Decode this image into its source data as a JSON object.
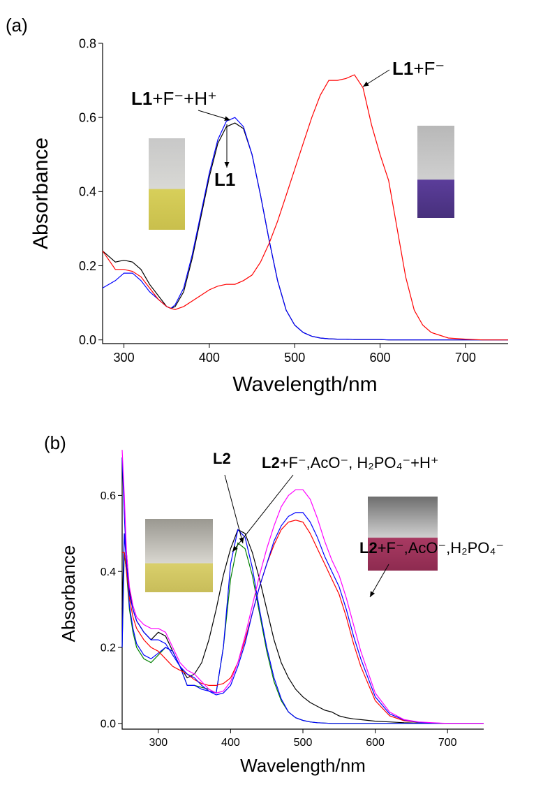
{
  "chart_data": [
    {
      "type": "line",
      "panel": "(a)",
      "xlabel": "Wavelength/nm",
      "ylabel": "Absorbance",
      "xlim": [
        275,
        750
      ],
      "xticks": [
        300,
        400,
        500,
        600,
        700
      ],
      "ylim": [
        -0.01,
        0.8
      ],
      "yticks": [
        {
          "value": 0,
          "label": "0.0"
        },
        0.2,
        0.4,
        0.6,
        0.8
      ],
      "x": [
        275,
        290,
        300,
        310,
        320,
        330,
        340,
        350,
        355,
        360,
        370,
        380,
        390,
        400,
        410,
        420,
        430,
        440,
        450,
        460,
        470,
        480,
        490,
        500,
        510,
        520,
        530,
        540,
        550,
        560,
        570,
        580,
        590,
        600,
        610,
        620,
        630,
        640,
        650,
        660,
        680,
        700,
        720,
        750
      ],
      "series": [
        {
          "color": "#000000",
          "values": [
            0.24,
            0.21,
            0.215,
            0.21,
            0.19,
            0.15,
            0.12,
            0.09,
            0.085,
            0.09,
            0.13,
            0.22,
            0.33,
            0.44,
            0.53,
            0.575,
            0.585,
            0.57,
            0.5,
            0.39,
            0.27,
            0.16,
            0.08,
            0.04,
            0.02,
            0.01,
            0.005,
            0.003,
            0.002,
            0.002,
            0.001,
            0.001,
            0.001,
            0.001,
            0,
            0,
            0,
            0,
            0,
            0,
            0,
            0,
            0,
            0
          ]
        },
        {
          "color": "#0000ff",
          "values": [
            0.14,
            0.16,
            0.18,
            0.18,
            0.16,
            0.13,
            0.11,
            0.09,
            0.085,
            0.095,
            0.14,
            0.23,
            0.34,
            0.45,
            0.54,
            0.59,
            0.6,
            0.575,
            0.5,
            0.39,
            0.27,
            0.16,
            0.08,
            0.04,
            0.02,
            0.01,
            0.005,
            0.003,
            0.002,
            0.002,
            0.001,
            0.001,
            0.001,
            0.001,
            0,
            0,
            0,
            0,
            0,
            0,
            0,
            0,
            0,
            0
          ]
        },
        {
          "color": "#ff0000",
          "values": [
            0.24,
            0.19,
            0.19,
            0.185,
            0.17,
            0.14,
            0.11,
            0.09,
            0.085,
            0.082,
            0.09,
            0.105,
            0.12,
            0.135,
            0.145,
            0.15,
            0.15,
            0.16,
            0.175,
            0.21,
            0.26,
            0.32,
            0.39,
            0.46,
            0.53,
            0.6,
            0.66,
            0.7,
            0.7,
            0.705,
            0.715,
            0.68,
            0.58,
            0.5,
            0.43,
            0.3,
            0.17,
            0.08,
            0.04,
            0.02,
            0.005,
            0.002,
            0,
            0
          ]
        }
      ],
      "annotations": [
        {
          "bold": "L1",
          "text": "+F⁻+H⁺"
        },
        {
          "bold": "L1",
          "text": ""
        },
        {
          "bold": "L1",
          "text": "+F⁻"
        }
      ]
    },
    {
      "type": "line",
      "panel": "(b)",
      "xlabel": "Wavelength/nm",
      "ylabel": "Absorbance",
      "xlim": [
        250,
        750
      ],
      "xticks": [
        300,
        400,
        500,
        600,
        700
      ],
      "ylim": [
        -0.015,
        0.7
      ],
      "yticks": [
        {
          "value": 0,
          "label": "0.0"
        },
        0.2,
        0.4,
        0.6
      ],
      "x": [
        250,
        253,
        256,
        260,
        265,
        270,
        280,
        290,
        300,
        310,
        320,
        330,
        340,
        350,
        360,
        370,
        380,
        390,
        400,
        410,
        420,
        430,
        440,
        450,
        460,
        470,
        480,
        490,
        500,
        510,
        520,
        530,
        540,
        550,
        560,
        570,
        580,
        600,
        620,
        640,
        660,
        680,
        700,
        750
      ],
      "series": [
        {
          "color": "#000000",
          "values": [
            0.3,
            0.5,
            0.45,
            0.35,
            0.3,
            0.27,
            0.24,
            0.22,
            0.24,
            0.23,
            0.19,
            0.15,
            0.12,
            0.13,
            0.16,
            0.22,
            0.3,
            0.39,
            0.46,
            0.51,
            0.5,
            0.45,
            0.38,
            0.3,
            0.22,
            0.16,
            0.12,
            0.09,
            0.07,
            0.055,
            0.045,
            0.035,
            0.03,
            0.02,
            0.015,
            0.012,
            0.01,
            0.006,
            0.004,
            0.002,
            0.001,
            0,
            0,
            0
          ]
        },
        {
          "color": "#008000",
          "values": [
            0.2,
            0.45,
            0.4,
            0.3,
            0.24,
            0.2,
            0.17,
            0.16,
            0.18,
            0.2,
            0.19,
            0.15,
            0.1,
            0.1,
            0.095,
            0.09,
            0.08,
            0.2,
            0.38,
            0.475,
            0.46,
            0.39,
            0.29,
            0.19,
            0.11,
            0.06,
            0.03,
            0.015,
            0.008,
            0.004,
            0.002,
            0.001,
            0,
            0,
            0,
            0,
            0,
            0,
            0,
            0,
            0,
            0,
            0,
            0
          ]
        },
        {
          "color": "#0000ff",
          "values": [
            0.2,
            0.5,
            0.42,
            0.31,
            0.25,
            0.21,
            0.18,
            0.17,
            0.185,
            0.2,
            0.19,
            0.15,
            0.1,
            0.1,
            0.09,
            0.085,
            0.08,
            0.2,
            0.42,
            0.51,
            0.49,
            0.41,
            0.3,
            0.2,
            0.12,
            0.065,
            0.03,
            0.015,
            0.008,
            0.004,
            0.002,
            0.001,
            0,
            0,
            0,
            0,
            0,
            0,
            0,
            0,
            0,
            0,
            0,
            0
          ]
        },
        {
          "color": "#ff0000",
          "values": [
            0.45,
            0.45,
            0.4,
            0.33,
            0.28,
            0.25,
            0.22,
            0.2,
            0.19,
            0.17,
            0.15,
            0.14,
            0.13,
            0.115,
            0.105,
            0.1,
            0.1,
            0.105,
            0.12,
            0.16,
            0.22,
            0.29,
            0.36,
            0.42,
            0.47,
            0.51,
            0.53,
            0.535,
            0.53,
            0.5,
            0.46,
            0.42,
            0.38,
            0.34,
            0.28,
            0.21,
            0.15,
            0.06,
            0.02,
            0.007,
            0.003,
            0.001,
            0,
            0
          ]
        },
        {
          "color": "#0000ff",
          "values": [
            0.7,
            0.55,
            0.42,
            0.34,
            0.3,
            0.27,
            0.24,
            0.22,
            0.22,
            0.21,
            0.18,
            0.15,
            0.13,
            0.12,
            0.1,
            0.085,
            0.075,
            0.08,
            0.1,
            0.15,
            0.21,
            0.29,
            0.36,
            0.42,
            0.48,
            0.52,
            0.545,
            0.555,
            0.555,
            0.53,
            0.49,
            0.44,
            0.4,
            0.36,
            0.3,
            0.23,
            0.17,
            0.07,
            0.025,
            0.009,
            0.003,
            0.001,
            0,
            0
          ]
        },
        {
          "color": "#ff00ff",
          "values": [
            0.72,
            0.6,
            0.45,
            0.36,
            0.31,
            0.28,
            0.26,
            0.25,
            0.25,
            0.24,
            0.2,
            0.16,
            0.14,
            0.13,
            0.11,
            0.09,
            0.08,
            0.085,
            0.11,
            0.16,
            0.23,
            0.31,
            0.39,
            0.46,
            0.52,
            0.57,
            0.6,
            0.615,
            0.615,
            0.59,
            0.54,
            0.48,
            0.43,
            0.39,
            0.33,
            0.26,
            0.19,
            0.08,
            0.03,
            0.01,
            0.004,
            0.002,
            0,
            0
          ]
        }
      ],
      "annotations": [
        {
          "bold": "L2",
          "text": "+F⁻,AcO⁻, H₂PO₄⁻+H⁺"
        },
        {
          "bold": "L2",
          "text": ""
        },
        {
          "bold": "L2",
          "text": "+F⁻,AcO⁻,H₂PO₄⁻"
        }
      ]
    }
  ]
}
